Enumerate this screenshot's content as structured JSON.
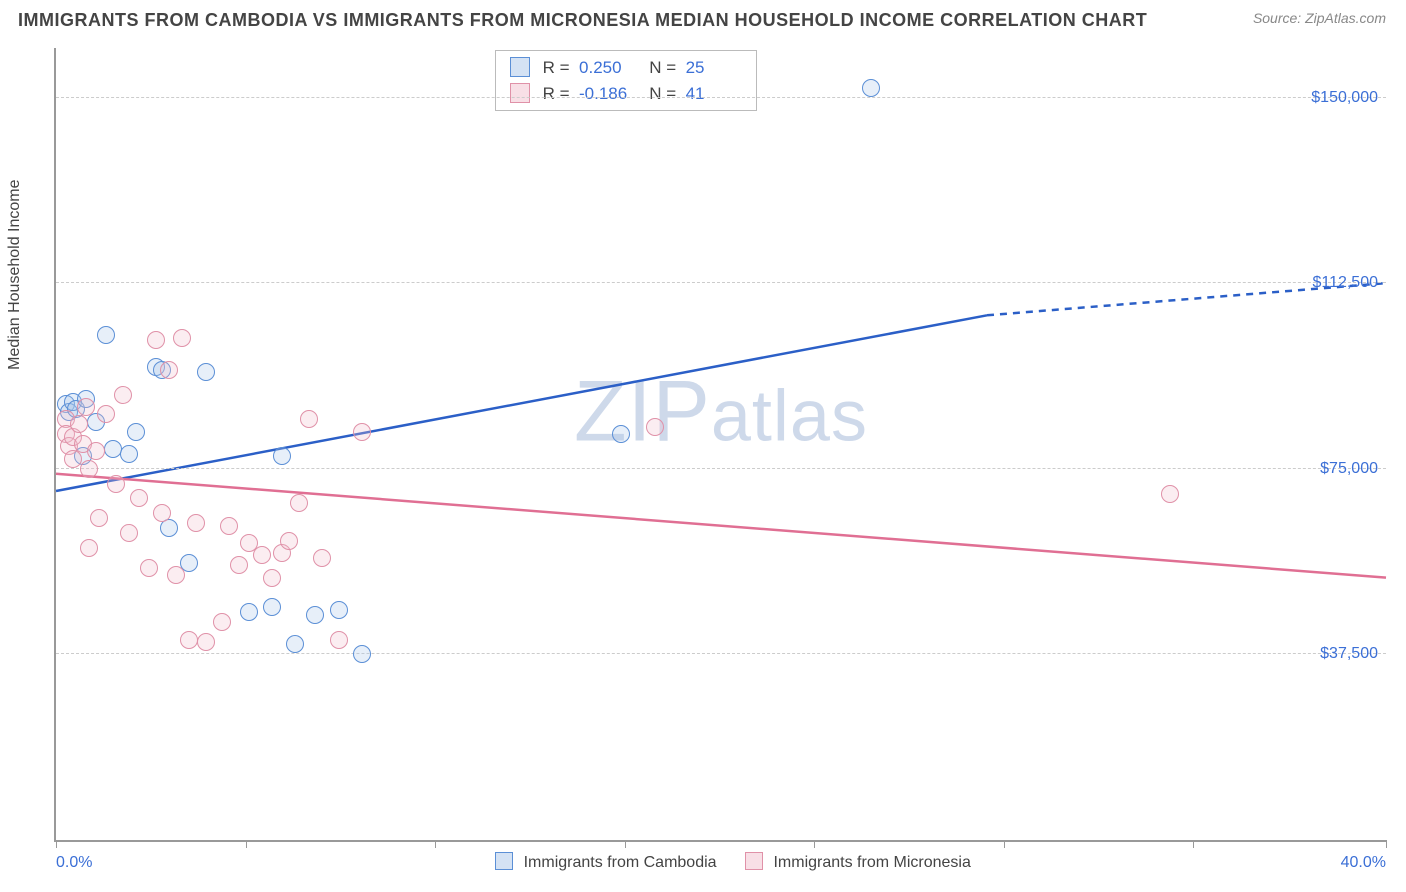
{
  "title": "IMMIGRANTS FROM CAMBODIA VS IMMIGRANTS FROM MICRONESIA MEDIAN HOUSEHOLD INCOME CORRELATION CHART",
  "source_label": "Source: ",
  "source_value": "ZipAtlas.com",
  "ylabel": "Median Household Income",
  "watermark_1": "ZIP",
  "watermark_2": "atlas",
  "chart": {
    "type": "scatter",
    "xlim": [
      0,
      40
    ],
    "ylim": [
      0,
      160000
    ],
    "x_min_label": "0.0%",
    "x_max_label": "40.0%",
    "y_ticks": [
      37500,
      75000,
      112500,
      150000
    ],
    "y_tick_labels": [
      "$37,500",
      "$75,000",
      "$112,500",
      "$150,000"
    ],
    "x_tick_positions": [
      0,
      5.7,
      11.4,
      17.1,
      22.8,
      28.5,
      34.2,
      40
    ],
    "grid_color": "#cccccc",
    "axis_color": "#999999",
    "background_color": "#ffffff",
    "tick_label_color": "#3b6fd6",
    "point_radius": 9,
    "point_stroke_width": 1.5,
    "point_fill_opacity": 0.28,
    "trend_line_width": 2.5,
    "series": [
      {
        "key": "cambodia",
        "label": "Immigrants from Cambodia",
        "color_stroke": "#5b8fd6",
        "color_fill": "#a9c6ea",
        "trend_color": "#2b5fc7",
        "R": "0.250",
        "N": "25",
        "trend": {
          "x1": 0,
          "y1": 70500,
          "x2": 28,
          "y2": 106000,
          "x_extend": 40,
          "y_extend": 112500
        },
        "points": [
          {
            "x": 0.3,
            "y": 88000
          },
          {
            "x": 0.4,
            "y": 86500
          },
          {
            "x": 0.5,
            "y": 88500
          },
          {
            "x": 0.6,
            "y": 87000
          },
          {
            "x": 0.8,
            "y": 77500
          },
          {
            "x": 0.9,
            "y": 89000
          },
          {
            "x": 1.2,
            "y": 84500
          },
          {
            "x": 1.5,
            "y": 102000
          },
          {
            "x": 1.7,
            "y": 79000
          },
          {
            "x": 2.2,
            "y": 78000
          },
          {
            "x": 2.4,
            "y": 82500
          },
          {
            "x": 3.0,
            "y": 95500
          },
          {
            "x": 3.2,
            "y": 95000
          },
          {
            "x": 3.4,
            "y": 63000
          },
          {
            "x": 4.0,
            "y": 56000
          },
          {
            "x": 4.5,
            "y": 94500
          },
          {
            "x": 5.8,
            "y": 46000
          },
          {
            "x": 6.5,
            "y": 47000
          },
          {
            "x": 6.8,
            "y": 77500
          },
          {
            "x": 7.2,
            "y": 39500
          },
          {
            "x": 7.8,
            "y": 45500
          },
          {
            "x": 8.5,
            "y": 46500
          },
          {
            "x": 9.2,
            "y": 37500
          },
          {
            "x": 17.0,
            "y": 82000
          },
          {
            "x": 24.5,
            "y": 152000
          }
        ]
      },
      {
        "key": "micronesia",
        "label": "Immigrants from Micronesia",
        "color_stroke": "#e091a8",
        "color_fill": "#f2bfcd",
        "trend_color": "#e06f93",
        "R": "-0.186",
        "N": "41",
        "trend": {
          "x1": 0,
          "y1": 74000,
          "x2": 40,
          "y2": 53000,
          "x_extend": 40,
          "y_extend": 53000
        },
        "points": [
          {
            "x": 0.3,
            "y": 85000
          },
          {
            "x": 0.3,
            "y": 82000
          },
          {
            "x": 0.4,
            "y": 79500
          },
          {
            "x": 0.5,
            "y": 81500
          },
          {
            "x": 0.5,
            "y": 77000
          },
          {
            "x": 0.7,
            "y": 84000
          },
          {
            "x": 0.8,
            "y": 80000
          },
          {
            "x": 0.9,
            "y": 87500
          },
          {
            "x": 1.0,
            "y": 75000
          },
          {
            "x": 1.2,
            "y": 78500
          },
          {
            "x": 1.3,
            "y": 65000
          },
          {
            "x": 1.5,
            "y": 86000
          },
          {
            "x": 1.8,
            "y": 72000
          },
          {
            "x": 2.0,
            "y": 90000
          },
          {
            "x": 2.2,
            "y": 62000
          },
          {
            "x": 2.5,
            "y": 69000
          },
          {
            "x": 2.8,
            "y": 55000
          },
          {
            "x": 3.0,
            "y": 101000
          },
          {
            "x": 3.2,
            "y": 66000
          },
          {
            "x": 3.4,
            "y": 95000
          },
          {
            "x": 3.6,
            "y": 53500
          },
          {
            "x": 3.8,
            "y": 101500
          },
          {
            "x": 4.0,
            "y": 40500
          },
          {
            "x": 4.2,
            "y": 64000
          },
          {
            "x": 4.5,
            "y": 40000
          },
          {
            "x": 5.0,
            "y": 44000
          },
          {
            "x": 5.2,
            "y": 63500
          },
          {
            "x": 5.5,
            "y": 55500
          },
          {
            "x": 5.8,
            "y": 60000
          },
          {
            "x": 6.2,
            "y": 57500
          },
          {
            "x": 6.5,
            "y": 53000
          },
          {
            "x": 6.8,
            "y": 58000
          },
          {
            "x": 7.0,
            "y": 60500
          },
          {
            "x": 7.3,
            "y": 68000
          },
          {
            "x": 7.6,
            "y": 85000
          },
          {
            "x": 8.0,
            "y": 57000
          },
          {
            "x": 8.5,
            "y": 40500
          },
          {
            "x": 9.2,
            "y": 82500
          },
          {
            "x": 18.0,
            "y": 83500
          },
          {
            "x": 33.5,
            "y": 70000
          },
          {
            "x": 1.0,
            "y": 59000
          }
        ]
      }
    ]
  },
  "stats_box": {
    "R_label": "R =",
    "N_label": "N ="
  }
}
